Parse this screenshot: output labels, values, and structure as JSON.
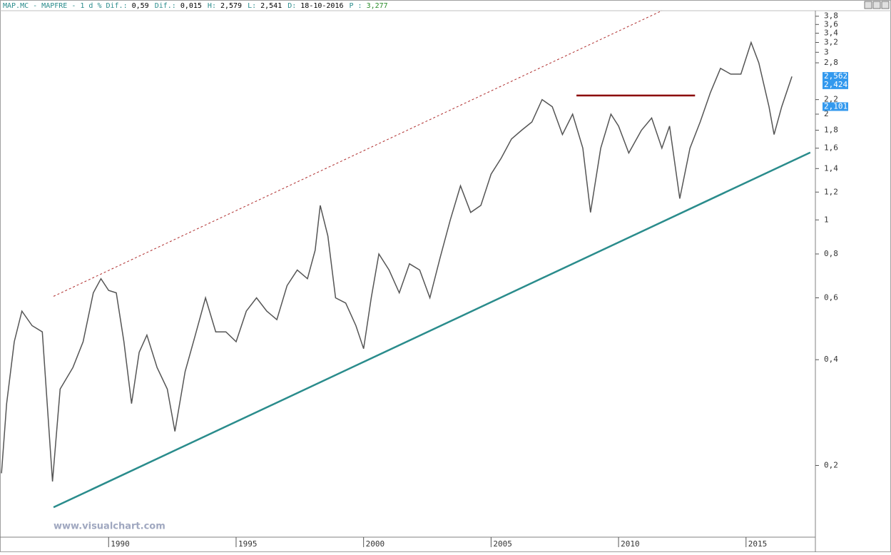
{
  "chart_data": {
    "type": "line",
    "header": [
      {
        "label": "MAP.MC - MAPFRE - 1 d % Dif.:",
        "value": "0,59"
      },
      {
        "label": "Dif.:",
        "value": "0,015"
      },
      {
        "label": "H:",
        "value": "2,579"
      },
      {
        "label": "L:",
        "value": "2,541"
      },
      {
        "label": "D:",
        "value": "18-10-2016"
      },
      {
        "label": "P :",
        "value": "3,277"
      }
    ],
    "annotation": "www.visualchart.com",
    "x": [
      1985.8,
      1986.0,
      1986.3,
      1986.6,
      1987.0,
      1987.4,
      1987.8,
      1988.1,
      1988.6,
      1989.0,
      1989.4,
      1989.7,
      1990.0,
      1990.3,
      1990.6,
      1990.9,
      1991.2,
      1991.5,
      1991.9,
      1992.3,
      1992.6,
      1993.0,
      1993.4,
      1993.8,
      1994.2,
      1994.6,
      1995.0,
      1995.4,
      1995.8,
      1996.2,
      1996.6,
      1997.0,
      1997.4,
      1997.8,
      1998.1,
      1998.3,
      1998.6,
      1998.9,
      1999.3,
      1999.7,
      2000.0,
      2000.3,
      2000.6,
      2001.0,
      2001.4,
      2001.8,
      2002.2,
      2002.6,
      2003.0,
      2003.4,
      2003.8,
      2004.2,
      2004.6,
      2005.0,
      2005.4,
      2005.8,
      2006.2,
      2006.6,
      2007.0,
      2007.4,
      2007.8,
      2008.2,
      2008.6,
      2008.9,
      2009.3,
      2009.7,
      2010.0,
      2010.4,
      2010.9,
      2011.3,
      2011.7,
      2012.0,
      2012.4,
      2012.8,
      2013.2,
      2013.6,
      2014.0,
      2014.4,
      2014.8,
      2015.2,
      2015.5,
      2015.9,
      2016.1,
      2016.4,
      2016.8
    ],
    "series": [
      {
        "color": "#555555",
        "values": [
          0.19,
          0.3,
          0.45,
          0.55,
          0.5,
          0.48,
          0.18,
          0.33,
          0.38,
          0.45,
          0.62,
          0.68,
          0.63,
          0.62,
          0.45,
          0.3,
          0.42,
          0.47,
          0.38,
          0.33,
          0.25,
          0.37,
          0.47,
          0.6,
          0.48,
          0.48,
          0.45,
          0.55,
          0.6,
          0.55,
          0.52,
          0.65,
          0.72,
          0.68,
          0.82,
          1.1,
          0.9,
          0.6,
          0.58,
          0.5,
          0.43,
          0.6,
          0.8,
          0.72,
          0.62,
          0.75,
          0.72,
          0.6,
          0.78,
          1.0,
          1.25,
          1.05,
          1.1,
          1.35,
          1.5,
          1.7,
          1.8,
          1.9,
          2.2,
          2.1,
          1.75,
          2.0,
          1.6,
          1.05,
          1.6,
          2.0,
          1.85,
          1.55,
          1.8,
          1.95,
          1.6,
          1.85,
          1.15,
          1.6,
          1.9,
          2.3,
          2.7,
          2.6,
          2.6,
          3.2,
          2.8,
          2.1,
          1.75,
          2.1,
          2.56
        ]
      }
    ],
    "trendlines": [
      {
        "color": "#2a8c8c",
        "style": "solid",
        "x": [
          1987.84,
          2017.52
        ],
        "y": [
          0.152,
          1.556
        ]
      },
      {
        "color": "#b03030",
        "style": "dashed",
        "x": [
          1987.84,
          2011.7
        ],
        "y": [
          0.606,
          3.94
        ]
      },
      {
        "color": "#8b0000",
        "style": "solid",
        "x": [
          2008.35,
          2013.0
        ],
        "y": [
          2.26,
          2.26
        ]
      }
    ],
    "price_markers": [
      {
        "value": 2.562,
        "label": "2,562"
      },
      {
        "value": 2.424,
        "label": "2,424"
      },
      {
        "value": 2.101,
        "label": "2,101"
      }
    ],
    "log_y": true,
    "xlim": [
      1985.74,
      2017.72
    ],
    "xticks": [
      1990,
      1995,
      2000,
      2005,
      2010,
      2015
    ],
    "ylim": [
      0.125,
      3.94
    ],
    "yticks": [
      {
        "value": 0.2,
        "label": "0,2"
      },
      {
        "value": 0.4,
        "label": "0,4"
      },
      {
        "value": 0.6,
        "label": "0,6"
      },
      {
        "value": 0.8,
        "label": "0,8"
      },
      1,
      {
        "value": 1.2,
        "label": "1,2"
      },
      {
        "value": 1.4,
        "label": "1,4"
      },
      {
        "value": 1.6,
        "label": "1,6"
      },
      {
        "value": 1.8,
        "label": "1,8"
      },
      2,
      {
        "value": 2.2,
        "label": "2,2"
      },
      {
        "value": 2.8,
        "label": "2,8"
      },
      3,
      {
        "value": 3.2,
        "label": "3,2"
      },
      {
        "value": 3.4,
        "label": "3,4"
      },
      {
        "value": 3.6,
        "label": "3,6"
      },
      {
        "value": 3.8,
        "label": "3,8"
      }
    ]
  }
}
